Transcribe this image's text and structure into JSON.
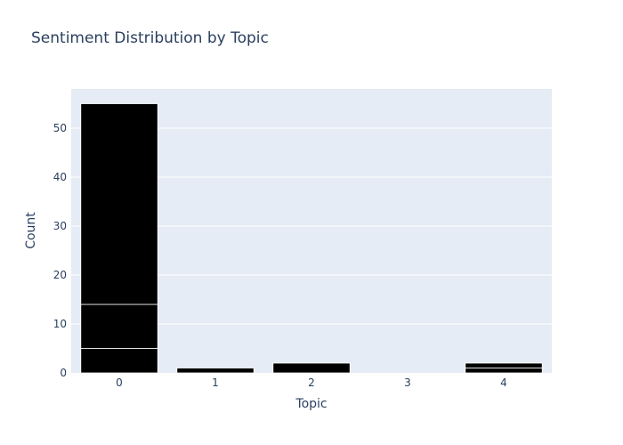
{
  "chart_data": {
    "type": "bar",
    "stacked": true,
    "title": "Sentiment Distribution by Topic",
    "xlabel": "Topic",
    "ylabel": "Count",
    "categories": [
      "0",
      "1",
      "2",
      "3",
      "4"
    ],
    "series": [
      {
        "values": [
          5,
          0,
          0,
          0,
          1
        ]
      },
      {
        "values": [
          9,
          0,
          0,
          0,
          1
        ]
      },
      {
        "values": [
          41,
          1,
          2,
          0,
          0
        ]
      }
    ],
    "yticks": [
      0,
      10,
      20,
      30,
      40,
      50
    ],
    "ylim": [
      0,
      58
    ],
    "grid": true,
    "colors": {
      "bar": "#000000",
      "bar_edge": "#ffffff",
      "plot_bg": "#e5ecf6",
      "grid": "#ffffff",
      "text": "#2a3f5f"
    }
  }
}
